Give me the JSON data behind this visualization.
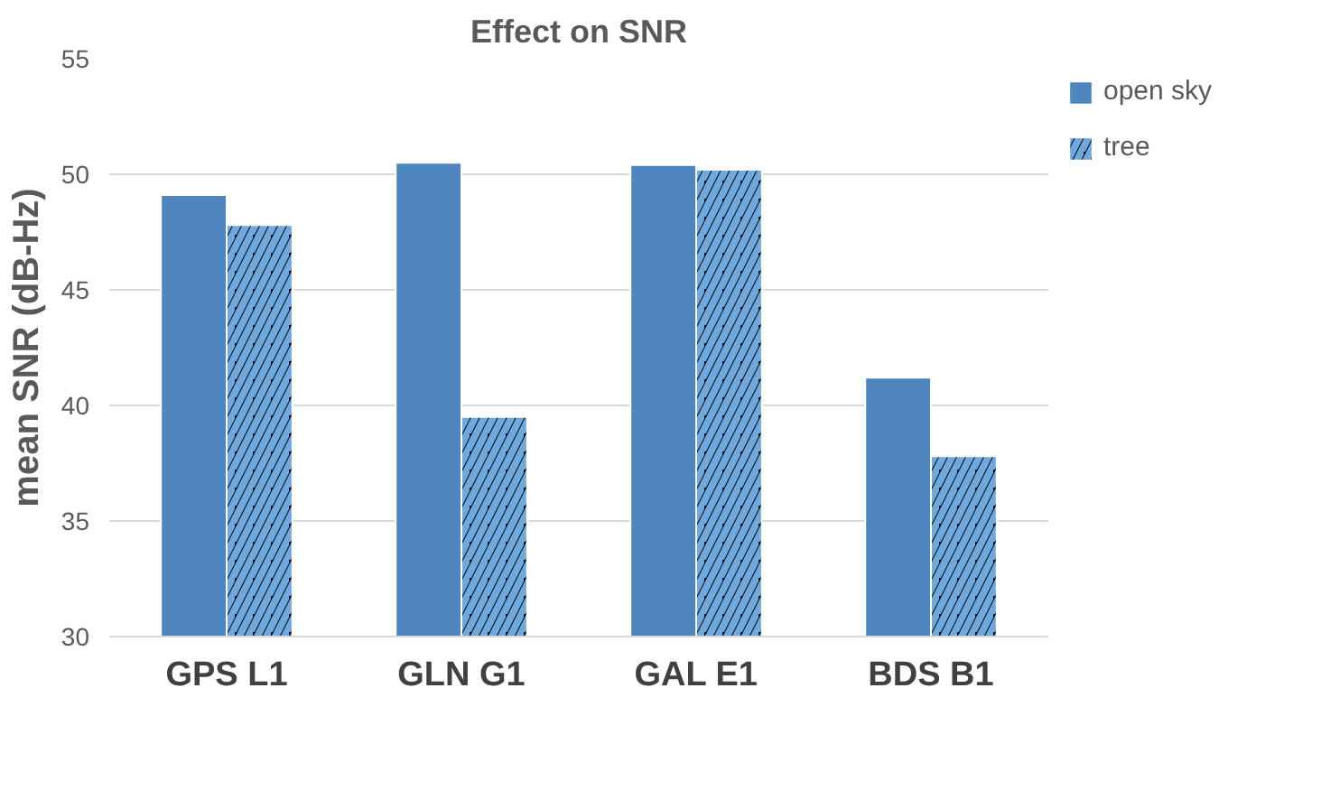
{
  "chart_data": {
    "type": "bar",
    "title": "Effect on SNR",
    "ylabel": "mean SNR (dB-Hz)",
    "categories": [
      "GPS L1",
      "GLN G1",
      "GAL E1",
      "BDS B1"
    ],
    "series": [
      {
        "name": "open sky",
        "color": "#4f86bf",
        "values": [
          49.1,
          50.5,
          50.4,
          41.2
        ]
      },
      {
        "name": "tree",
        "color": "#000000",
        "values": [
          47.8,
          39.5,
          50.2,
          37.8
        ]
      }
    ],
    "ylim": [
      30,
      55
    ],
    "yticks": [
      30,
      35,
      40,
      45,
      50,
      55
    ],
    "grid": "y",
    "legend": "top right"
  }
}
